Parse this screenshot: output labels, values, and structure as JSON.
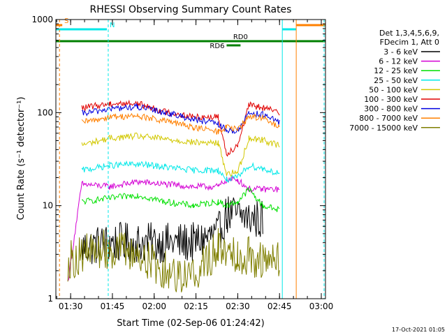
{
  "chart_data": {
    "type": "line",
    "title": "RHESSI Observing Summary Count Rates",
    "xlabel": "Start Time (02-Sep-06 01:24:42)",
    "ylabel": "Count Rate (s⁻¹ detector⁻¹)",
    "yscale": "log",
    "xlim": [
      "01:24:42",
      "03:01:30"
    ],
    "ylim": [
      1,
      1000
    ],
    "x_ticks": [
      "01:30",
      "01:45",
      "02:00",
      "02:15",
      "02:30",
      "02:45",
      "03:00"
    ],
    "y_ticks": [
      "1",
      "10",
      "100",
      "1000"
    ],
    "grid": false,
    "legend_position": "right",
    "legend_header": [
      "Det 1,3,4,5,6,9,",
      "FDecim 1, Att 0"
    ],
    "time_knots": [
      "01:29",
      "01:34",
      "01:44",
      "01:54",
      "02:04",
      "02:14",
      "02:23",
      "02:26",
      "02:30",
      "02:34",
      "02:39",
      "02:45",
      "02:47"
    ],
    "series": [
      {
        "name": "3 - 6 keV",
        "color": "#000000",
        "values": [
          null,
          3.5,
          4,
          4,
          4,
          4,
          5,
          8,
          8,
          7.5,
          7,
          null,
          null
        ]
      },
      {
        "name": "6 - 12 keV",
        "color": "#d400d4",
        "values": [
          1.5,
          17,
          16,
          18,
          17,
          16,
          16,
          19,
          19,
          15,
          15,
          15,
          null
        ]
      },
      {
        "name": "12 - 25 keV",
        "color": "#00e000",
        "values": [
          null,
          11,
          12,
          13,
          11,
          10,
          11,
          10,
          11,
          15,
          10,
          9,
          null
        ]
      },
      {
        "name": "25 - 50 keV",
        "color": "#00e8e8",
        "values": [
          null,
          24,
          27,
          28,
          26,
          24,
          24,
          19,
          20,
          27,
          25,
          22,
          null
        ]
      },
      {
        "name": "50 - 100 keV",
        "color": "#d2c800",
        "values": [
          null,
          45,
          53,
          56,
          52,
          48,
          47,
          22,
          23,
          53,
          51,
          44,
          null
        ]
      },
      {
        "name": "100 - 300 keV",
        "color": "#e00000",
        "values": [
          null,
          112,
          125,
          125,
          102,
          90,
          90,
          36,
          45,
          120,
          113,
          100,
          null
        ]
      },
      {
        "name": "300 - 800 keV",
        "color": "#0000e0",
        "values": [
          null,
          97,
          110,
          115,
          100,
          85,
          75,
          64,
          64,
          100,
          95,
          78,
          null
        ]
      },
      {
        "name": "800 - 7000 keV",
        "color": "#ff8000",
        "values": [
          null,
          78,
          90,
          92,
          81,
          70,
          62,
          70,
          65,
          91,
          88,
          68,
          null
        ]
      },
      {
        "name": "7000 - 15000 keV",
        "color": "#7f7f00",
        "values": [
          2.5,
          3,
          3.5,
          3,
          2,
          1.8,
          3.5,
          3.5,
          3,
          3,
          2.5,
          2.5,
          null
        ]
      }
    ],
    "state_bars": [
      {
        "label": "S",
        "color": "#ff8000",
        "start": "01:24:42",
        "end": "01:27"
      },
      {
        "label": "N",
        "color": "#00e8e8",
        "start": "01:24:42",
        "end": "01:43"
      },
      {
        "label": "",
        "color": "#00e8e8",
        "start": "02:46",
        "end": "02:51"
      },
      {
        "label": "",
        "color": "#ff8000",
        "start": "02:51",
        "end": "03:01:30"
      },
      {
        "label": "RD0",
        "color": "#007f00",
        "start": "01:24:42",
        "end": "03:01:30"
      },
      {
        "label": "RD6",
        "color": "#007f00",
        "start": "02:26",
        "end": "02:31"
      }
    ],
    "markers": [
      {
        "time": "01:26:00",
        "color": "#ff8000",
        "style": "dashed"
      },
      {
        "time": "01:43:30",
        "color": "#00e8e8",
        "style": "dashed"
      },
      {
        "time": "02:46:00",
        "color": "#00e8e8",
        "style": "solid"
      },
      {
        "time": "02:51:00",
        "color": "#ff8000",
        "style": "solid"
      },
      {
        "time": "03:01:00",
        "color": "#00e8e8",
        "style": "dashed"
      }
    ]
  },
  "footer_timestamp": "17-Oct-2021 01:05"
}
